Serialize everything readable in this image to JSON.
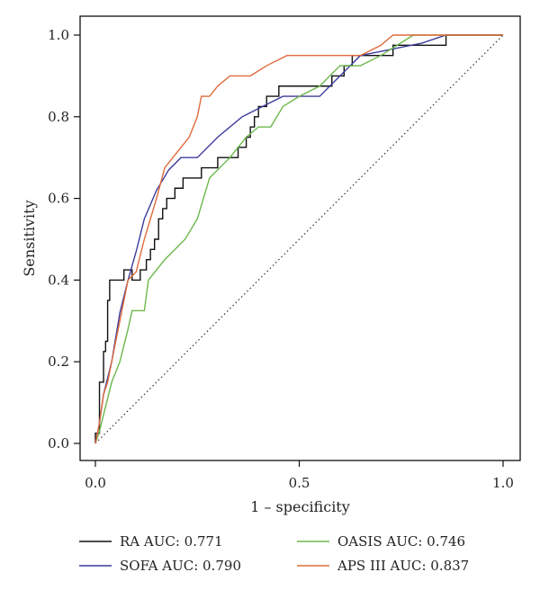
{
  "chart_data": {
    "type": "line",
    "title": "",
    "xlabel": "1 – specificity",
    "ylabel": "Sensitivity",
    "xlim": [
      0,
      1
    ],
    "ylim": [
      0,
      1
    ],
    "x_ticks": [
      0.0,
      0.5,
      1.0
    ],
    "x_tick_labels": [
      "0.0",
      "0.5",
      "1.0"
    ],
    "y_ticks": [
      0.0,
      0.2,
      0.4,
      0.6,
      0.8,
      1.0
    ],
    "y_tick_labels": [
      "0.0",
      "0.2",
      "0.4",
      "0.6",
      "0.8",
      "1.0"
    ],
    "grid": false,
    "legend_position": "bottom",
    "reference_line": {
      "style": "dotted",
      "from": [
        0,
        0
      ],
      "to": [
        1,
        1
      ],
      "color": "#333333"
    },
    "series": [
      {
        "name": "RA AUC: 0.771",
        "color": "#111111",
        "x": [
          0.0,
          0.0,
          0.01,
          0.01,
          0.02,
          0.02,
          0.025,
          0.025,
          0.03,
          0.03,
          0.035,
          0.035,
          0.07,
          0.07,
          0.09,
          0.09,
          0.11,
          0.11,
          0.125,
          0.125,
          0.135,
          0.135,
          0.145,
          0.145,
          0.155,
          0.155,
          0.165,
          0.165,
          0.175,
          0.175,
          0.195,
          0.195,
          0.215,
          0.215,
          0.26,
          0.26,
          0.3,
          0.3,
          0.35,
          0.35,
          0.37,
          0.37,
          0.38,
          0.38,
          0.39,
          0.39,
          0.4,
          0.4,
          0.42,
          0.42,
          0.45,
          0.45,
          0.5,
          0.5,
          0.58,
          0.58,
          0.61,
          0.61,
          0.63,
          0.63,
          0.66,
          0.66,
          0.73,
          0.73,
          0.84,
          0.84,
          0.86,
          0.86,
          1.0
        ],
        "y": [
          0.0,
          0.025,
          0.025,
          0.15,
          0.15,
          0.225,
          0.225,
          0.25,
          0.25,
          0.35,
          0.35,
          0.4,
          0.4,
          0.425,
          0.425,
          0.4,
          0.4,
          0.425,
          0.425,
          0.45,
          0.45,
          0.475,
          0.475,
          0.5,
          0.5,
          0.55,
          0.55,
          0.575,
          0.575,
          0.6,
          0.6,
          0.625,
          0.625,
          0.65,
          0.65,
          0.675,
          0.675,
          0.7,
          0.7,
          0.725,
          0.725,
          0.75,
          0.75,
          0.775,
          0.775,
          0.8,
          0.8,
          0.825,
          0.825,
          0.85,
          0.85,
          0.875,
          0.875,
          0.875,
          0.875,
          0.9,
          0.9,
          0.925,
          0.925,
          0.95,
          0.95,
          0.95,
          0.95,
          0.975,
          0.975,
          0.975,
          0.975,
          1.0,
          1.0
        ]
      },
      {
        "name": "SOFA AUC: 0.790",
        "color": "#3c3c9c",
        "x": [
          0.0,
          0.01,
          0.02,
          0.04,
          0.06,
          0.08,
          0.1,
          0.12,
          0.15,
          0.18,
          0.21,
          0.25,
          0.3,
          0.36,
          0.42,
          0.46,
          0.5,
          0.55,
          0.6,
          0.65,
          0.7,
          0.75,
          0.8,
          0.86,
          1.0
        ],
        "y": [
          0.0,
          0.05,
          0.12,
          0.2,
          0.32,
          0.4,
          0.47,
          0.55,
          0.62,
          0.67,
          0.7,
          0.7,
          0.75,
          0.8,
          0.83,
          0.85,
          0.85,
          0.85,
          0.9,
          0.95,
          0.96,
          0.97,
          0.98,
          1.0,
          1.0
        ]
      },
      {
        "name": "OASIS AUC: 0.746",
        "color": "#6cb84c",
        "x": [
          0.0,
          0.01,
          0.02,
          0.04,
          0.06,
          0.08,
          0.09,
          0.12,
          0.13,
          0.15,
          0.17,
          0.2,
          0.22,
          0.25,
          0.28,
          0.33,
          0.37,
          0.4,
          0.43,
          0.46,
          0.5,
          0.55,
          0.6,
          0.65,
          0.7,
          0.78,
          1.0
        ],
        "y": [
          0.0,
          0.03,
          0.07,
          0.15,
          0.2,
          0.28,
          0.325,
          0.325,
          0.4,
          0.425,
          0.45,
          0.48,
          0.5,
          0.55,
          0.65,
          0.7,
          0.75,
          0.775,
          0.775,
          0.825,
          0.85,
          0.875,
          0.925,
          0.925,
          0.95,
          1.0,
          1.0
        ]
      },
      {
        "name": "APS III AUC: 0.837",
        "color": "#e06a3c",
        "x": [
          0.0,
          0.01,
          0.02,
          0.03,
          0.04,
          0.06,
          0.08,
          0.1,
          0.12,
          0.15,
          0.17,
          0.19,
          0.21,
          0.23,
          0.25,
          0.26,
          0.28,
          0.3,
          0.33,
          0.38,
          0.42,
          0.47,
          0.52,
          0.6,
          0.65,
          0.7,
          0.73,
          0.8,
          1.0
        ],
        "y": [
          0.0,
          0.05,
          0.12,
          0.15,
          0.2,
          0.3,
          0.4,
          0.42,
          0.5,
          0.6,
          0.675,
          0.7,
          0.725,
          0.75,
          0.8,
          0.85,
          0.85,
          0.875,
          0.9,
          0.9,
          0.925,
          0.95,
          0.95,
          0.95,
          0.95,
          0.975,
          1.0,
          1.0,
          1.0
        ]
      }
    ]
  }
}
